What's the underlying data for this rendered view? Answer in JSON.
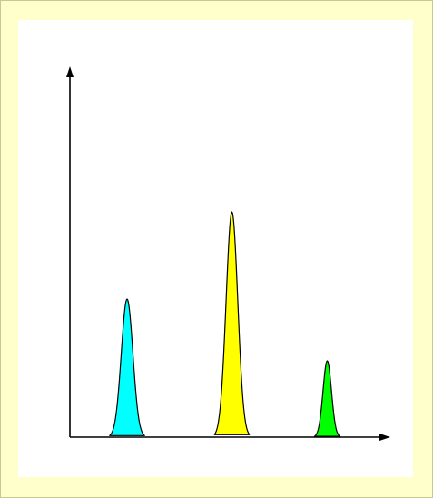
{
  "colors": {
    "page_background": "#ffffcc",
    "panel_background": "#ffffff",
    "axis": "#000000",
    "outline": "#000000"
  },
  "chart_data": {
    "type": "area",
    "title": "",
    "xlabel": "",
    "ylabel": "",
    "axis_arrows": true,
    "grid": false,
    "legend": "none",
    "peaks": [
      {
        "color": "#00ffff",
        "center": 0.18,
        "height": 0.38,
        "width": 0.11
      },
      {
        "color": "#ffff00",
        "center": 0.51,
        "height": 0.62,
        "width": 0.11
      },
      {
        "color": "#00ff00",
        "center": 0.81,
        "height": 0.21,
        "width": 0.08
      }
    ]
  }
}
